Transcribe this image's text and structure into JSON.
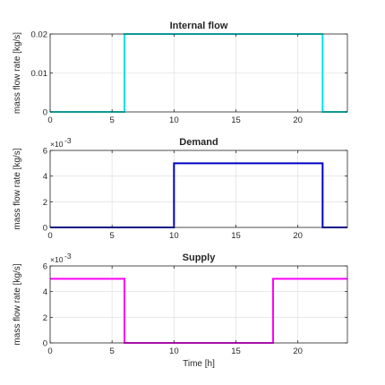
{
  "chart_data": [
    {
      "type": "line",
      "title": "Internal flow",
      "ylabel": "mass flow rate [kg/s]",
      "xlabel": "",
      "xlim": [
        0,
        24
      ],
      "ylim": [
        0,
        0.02
      ],
      "x_ticks": [
        "0",
        "5",
        "10",
        "15",
        "20"
      ],
      "y_ticks": [
        "0",
        "0.01",
        "0.02"
      ],
      "exponent_label": "",
      "grid": true,
      "series": [
        {
          "color": "#00e5e5",
          "x": [
            0,
            6,
            6,
            22,
            22,
            24
          ],
          "y": [
            0,
            0,
            0.02,
            0.02,
            0,
            0
          ]
        }
      ]
    },
    {
      "type": "line",
      "title": "Demand",
      "ylabel": "mass flow rate [kg/s]",
      "xlabel": "",
      "xlim": [
        0,
        24
      ],
      "ylim": [
        0,
        0.006
      ],
      "x_ticks": [
        "0",
        "5",
        "10",
        "15",
        "20"
      ],
      "y_ticks": [
        "0",
        "2",
        "4",
        "6"
      ],
      "exponent_label": "×10",
      "exponent_power": "-3",
      "grid": true,
      "series": [
        {
          "color": "#0000cc",
          "x": [
            0,
            10,
            10,
            22,
            22,
            24
          ],
          "y": [
            0,
            0,
            0.005,
            0.005,
            0,
            0
          ]
        }
      ]
    },
    {
      "type": "line",
      "title": "Supply",
      "ylabel": "mass flow rate [kg/s]",
      "xlabel": "Time [h]",
      "xlim": [
        0,
        24
      ],
      "ylim": [
        0,
        0.006
      ],
      "x_ticks": [
        "0",
        "5",
        "10",
        "15",
        "20"
      ],
      "y_ticks": [
        "0",
        "2",
        "4",
        "6"
      ],
      "exponent_label": "×10",
      "exponent_power": "-3",
      "grid": true,
      "series": [
        {
          "color": "#ff00ff",
          "x": [
            0,
            6,
            6,
            18,
            18,
            24
          ],
          "y": [
            0.005,
            0.005,
            0,
            0,
            0.005,
            0.005
          ]
        }
      ]
    }
  ]
}
